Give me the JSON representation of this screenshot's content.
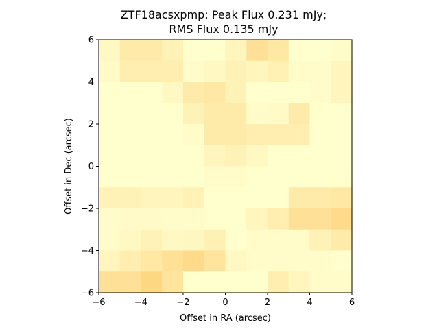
{
  "chart_data": {
    "type": "heatmap",
    "title_line1": "ZTF18acsxpmp: Peak Flux 0.231 mJy;",
    "title_line2": "RMS Flux 0.135 mJy",
    "xlabel": "Offset in RA (arcsec)",
    "ylabel": "Offset in Dec (arcsec)",
    "xlim": [
      -6,
      6
    ],
    "ylim": [
      -6,
      6
    ],
    "xticks": [
      "−6",
      "−4",
      "−2",
      "0",
      "2",
      "4",
      "6"
    ],
    "yticks": [
      "−6",
      "−4",
      "−2",
      "0",
      "2",
      "4",
      "6"
    ],
    "grid": false,
    "colormap": "YlOrBr (low = #ffffd0, high = #fdc050)",
    "nx": 12,
    "ny": 12,
    "rows_top_to_bottom": [
      [
        0.1,
        0.3,
        0.3,
        0.2,
        0.02,
        0.02,
        0.15,
        0.45,
        0.35,
        0.02,
        0.02,
        0.05
      ],
      [
        0.08,
        0.25,
        0.25,
        0.25,
        0.05,
        0.1,
        0.2,
        0.15,
        0.22,
        0.05,
        0.05,
        0.15
      ],
      [
        0.02,
        0.02,
        0.02,
        0.1,
        0.3,
        0.35,
        0.2,
        0.02,
        0.02,
        0.02,
        0.05,
        0.15
      ],
      [
        0.02,
        0.02,
        0.02,
        0.02,
        0.2,
        0.3,
        0.3,
        0.05,
        0.08,
        0.3,
        0.02,
        0.02
      ],
      [
        0.02,
        0.02,
        0.02,
        0.02,
        0.05,
        0.3,
        0.3,
        0.25,
        0.25,
        0.25,
        0.02,
        0.02
      ],
      [
        0.02,
        0.02,
        0.02,
        0.02,
        0.02,
        0.15,
        0.2,
        0.1,
        0.02,
        0.02,
        0.02,
        0.02
      ],
      [
        0.02,
        0.02,
        0.02,
        0.02,
        0.02,
        0.05,
        0.05,
        0.02,
        0.02,
        0.02,
        0.02,
        0.02
      ],
      [
        0.2,
        0.2,
        0.15,
        0.15,
        0.2,
        0.02,
        0.02,
        0.02,
        0.02,
        0.3,
        0.3,
        0.35
      ],
      [
        0.05,
        0.07,
        0.07,
        0.05,
        0.05,
        0.02,
        0.02,
        0.15,
        0.25,
        0.45,
        0.45,
        0.55
      ],
      [
        0.05,
        0.1,
        0.2,
        0.1,
        0.12,
        0.22,
        0.02,
        0.05,
        0.05,
        0.05,
        0.2,
        0.3
      ],
      [
        0.15,
        0.25,
        0.35,
        0.45,
        0.55,
        0.4,
        0.1,
        0.05,
        0.05,
        0.05,
        0.05,
        0.02
      ],
      [
        0.45,
        0.45,
        0.6,
        0.4,
        0.02,
        0.02,
        0.02,
        0.02,
        0.25,
        0.15,
        0.05,
        0.05
      ]
    ]
  }
}
